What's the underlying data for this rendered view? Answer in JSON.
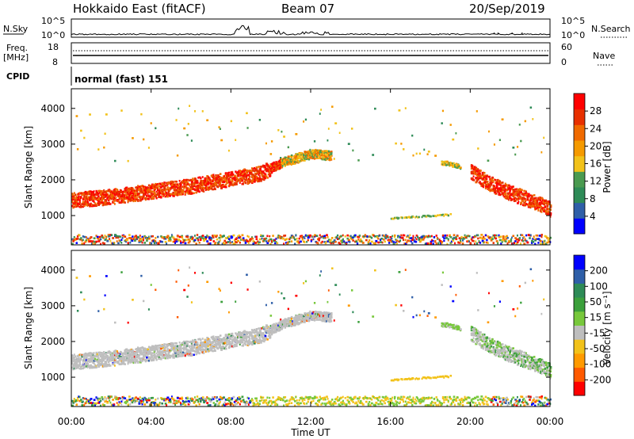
{
  "header": {
    "title": "Hokkaido East (fitACF)",
    "beam": "Beam 07",
    "date": "20/Sep/2019"
  },
  "top_panels": {
    "nsky_label": "N.Sky",
    "nsky_ticks": [
      "10^5",
      "10^0"
    ],
    "nsearch_label": "N.Search",
    "nsearch_ticks": [
      "10^5",
      "10^0"
    ],
    "freq_label": "Freq.",
    "freq_unit": "[MHz]",
    "freq_ticks": [
      "18",
      "8"
    ],
    "nave_label": "Nave",
    "nave_ticks": [
      "60",
      "0"
    ],
    "cpid_label": "CPID",
    "cpid_value": "normal (fast) 151"
  },
  "colors": {
    "power": [
      "#0000ff",
      "#2f5fa8",
      "#2e8b57",
      "#4a9a50",
      "#f2c21a",
      "#f59a00",
      "#f06a00",
      "#e83000",
      "#ff0000"
    ],
    "velocity": [
      "#ff0000",
      "#ff5a00",
      "#ff9a00",
      "#f2c21a",
      "#bebebe",
      "#78c83c",
      "#3ca03c",
      "#2e8b57",
      "#2f5fa8",
      "#0000ff"
    ],
    "ground_scatter": "#bebebe"
  },
  "chart_data": [
    {
      "type": "heatmap",
      "name": "power",
      "ylabel": "Slant Range [km]",
      "yticks": [
        1000,
        2000,
        3000,
        4000
      ],
      "ylim": [
        180,
        4550
      ],
      "xlim_hours": [
        0,
        24
      ],
      "colorbar": {
        "label": "Power [dB]",
        "ticks": [
          "4",
          "8",
          "12",
          "16",
          "20",
          "24",
          "28"
        ],
        "range": [
          0,
          32
        ]
      },
      "features": [
        {
          "band": "main_echo",
          "points": [
            [
              0,
              1450
            ],
            [
              2,
              1550
            ],
            [
              4,
              1700
            ],
            [
              6,
              1850
            ],
            [
              8,
              2050
            ],
            [
              9.5,
              2200
            ],
            [
              10.5,
              2500
            ],
            [
              12,
              2750
            ],
            [
              13,
              2700
            ]
          ]
        },
        {
          "band": "evening_echo",
          "points": [
            [
              18.5,
              2500
            ],
            [
              19.5,
              2400
            ]
          ]
        },
        {
          "band": "dusk_echo",
          "points": [
            [
              20,
              2250
            ],
            [
              21,
              1900
            ],
            [
              22,
              1650
            ],
            [
              23,
              1450
            ],
            [
              24,
              1200
            ]
          ]
        },
        {
          "band": "patch",
          "points": [
            [
              16,
              950
            ],
            [
              19,
              1050
            ]
          ]
        },
        {
          "band": "near_range",
          "points": [
            [
              0,
              300
            ],
            [
              24,
              300
            ]
          ]
        }
      ]
    },
    {
      "type": "heatmap",
      "name": "velocity",
      "ylabel": "Slant Range [km]",
      "yticks": [
        1000,
        2000,
        3000,
        4000
      ],
      "ylim": [
        180,
        4550
      ],
      "xlim_hours": [
        0,
        24
      ],
      "xticks": [
        "00:00",
        "04:00",
        "08:00",
        "12:00",
        "16:00",
        "20:00",
        "00:00"
      ],
      "xlabel": "Time UT",
      "colorbar": {
        "label": "Velocity [m s⁻¹]",
        "ticks": [
          "-200",
          "-100",
          "-50",
          "-15",
          "15",
          "50",
          "100",
          "200"
        ],
        "range": [
          -250,
          250
        ]
      }
    }
  ]
}
